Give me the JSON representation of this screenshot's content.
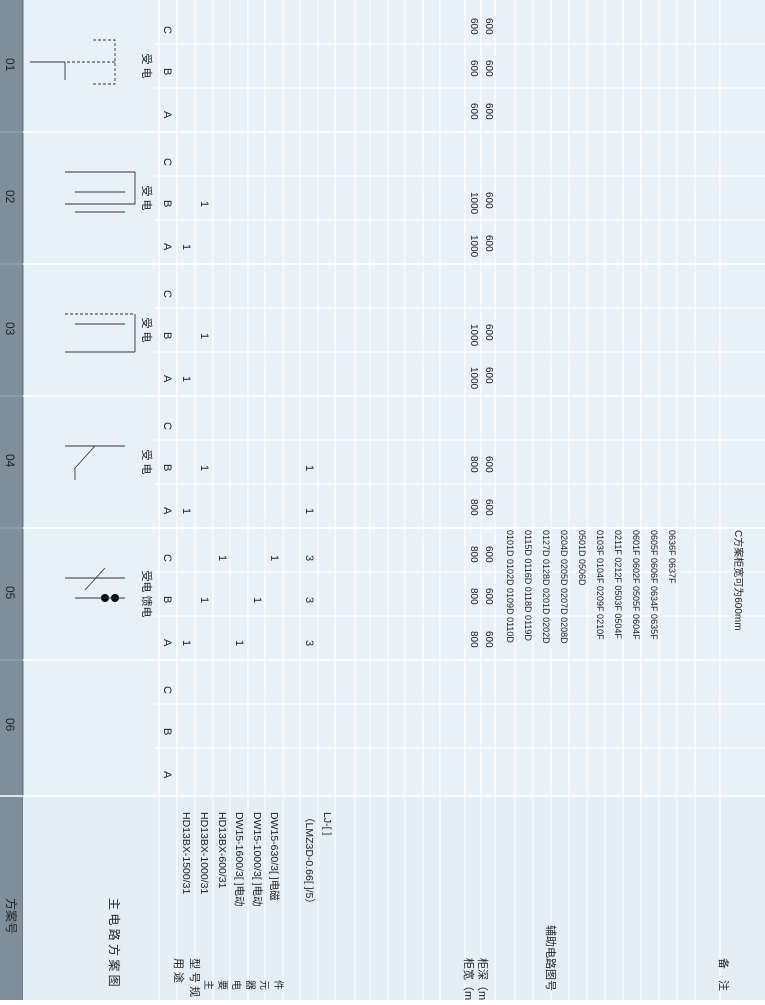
{
  "header": {
    "scheme_label": "方案号",
    "scheme_numbers": [
      "01",
      "02",
      "03",
      "04",
      "05",
      "06"
    ]
  },
  "labels": {
    "main_circuit": "主 电 路 方 案 图",
    "usage": "用 途",
    "model_spec": "型 号 规 格",
    "components": [
      "HD13BX-1500/31",
      "HD13BX-1000/31",
      "HD13BX-600/31",
      "DW15-1600/3[ ]电动",
      "DW15-1000/3[ ]电动",
      "DW15-630/3[ ]电磁",
      "",
      "（LMZ3D-0.66[ ]/5）",
      "LJ-[ ]"
    ],
    "main_components_vertical": "主要电器元件",
    "cabinet_width": "柜宽（mm）",
    "cabinet_depth": "柜深（mm）",
    "aux_circuit": "辅助电路图号",
    "remarks": "备　注"
  },
  "schemes": [
    {
      "usage": "受 电",
      "abc": [
        "A",
        "B",
        "C"
      ],
      "qty": [],
      "width": [
        "600",
        "600",
        "600"
      ],
      "depth": [
        "600",
        "600",
        "600"
      ],
      "aux": [],
      "note": ""
    },
    {
      "usage": "受 电",
      "abc": [
        "A",
        "B",
        "C"
      ],
      "qty": [
        {
          "row": 0,
          "col": 0,
          "v": "1"
        },
        {
          "row": 1,
          "col": 1,
          "v": "1"
        }
      ],
      "width": [
        "1000",
        "1000",
        ""
      ],
      "depth": [
        "600",
        "600",
        ""
      ],
      "aux": [],
      "note": ""
    },
    {
      "usage": "受 电",
      "abc": [
        "A",
        "B",
        "C"
      ],
      "qty": [
        {
          "row": 0,
          "col": 0,
          "v": "1"
        },
        {
          "row": 1,
          "col": 1,
          "v": "1"
        }
      ],
      "width": [
        "1000",
        "1000",
        ""
      ],
      "depth": [
        "600",
        "600",
        ""
      ],
      "aux": [],
      "note": ""
    },
    {
      "usage": "受 电",
      "abc": [
        "A",
        "B",
        "C"
      ],
      "qty": [
        {
          "row": 0,
          "col": 0,
          "v": "1"
        },
        {
          "row": 1,
          "col": 1,
          "v": "1"
        },
        {
          "row": 7,
          "col": 0,
          "v": "1"
        },
        {
          "row": 7,
          "col": 1,
          "v": "1"
        }
      ],
      "width": [
        "800",
        "800",
        ""
      ],
      "depth": [
        "600",
        "600",
        ""
      ],
      "aux": [],
      "note": ""
    },
    {
      "usage": "受电 馈电",
      "abc": [
        "A",
        "B",
        "C"
      ],
      "qty": [
        {
          "row": 0,
          "col": 0,
          "v": "1"
        },
        {
          "row": 1,
          "col": 1,
          "v": "1"
        },
        {
          "row": 2,
          "col": 2,
          "v": "1"
        },
        {
          "row": 3,
          "col": 0,
          "v": "1"
        },
        {
          "row": 4,
          "col": 1,
          "v": "1"
        },
        {
          "row": 5,
          "col": 2,
          "v": "1"
        },
        {
          "row": 7,
          "col": 0,
          "v": "3"
        },
        {
          "row": 7,
          "col": 1,
          "v": "3"
        },
        {
          "row": 7,
          "col": 2,
          "v": "3"
        }
      ],
      "width": [
        "800",
        "800",
        "800"
      ],
      "depth": [
        "600",
        "600",
        "600"
      ],
      "aux": [
        "0101D 0102D 0109D 0110D",
        "0115D 0116D 0118D 0119D",
        "0127D 0128D 0201D 0202D",
        "0204D 0205D 0207D 0208D",
        "0501D 0506D",
        "0103F 0104F 0209F 0210F",
        "0211F 0212F 0503F 0504F",
        "0601F 0602F 0505F 0604F",
        "0605F 0606F 0634F 0635F",
        "0636F 0637F"
      ],
      "note": "C方案柜宽可为600mm"
    },
    {
      "usage": "",
      "abc": [
        "A",
        "B",
        "C"
      ],
      "qty": [],
      "width": [
        "",
        "",
        ""
      ],
      "depth": [
        "",
        "",
        ""
      ],
      "aux": [],
      "note": ""
    }
  ]
}
